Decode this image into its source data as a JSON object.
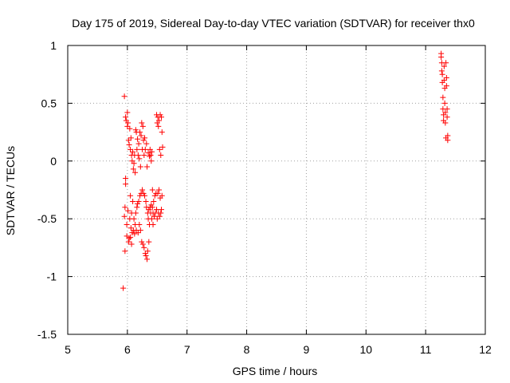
{
  "chart_data": {
    "type": "scatter",
    "title": "Day 175 of 2019, Sidereal Day-to-day VTEC variation (SDTVAR) for receiver thx0",
    "xlabel": "GPS time / hours",
    "ylabel": "SDTVAR / TECUs",
    "xlim": [
      5,
      12
    ],
    "ylim": [
      -1.5,
      1
    ],
    "xticks": [
      "5",
      "6",
      "7",
      "8",
      "9",
      "10",
      "11",
      "12"
    ],
    "yticks": [
      "-1.5",
      "-1",
      "-0.5",
      "0",
      "0.5",
      "1"
    ],
    "grid": true,
    "marker": "+",
    "series": [
      {
        "name": "SDTVAR",
        "color": "#ff0000",
        "points": [
          [
            5.93,
            -1.1
          ],
          [
            5.95,
            0.56
          ],
          [
            5.96,
            -0.78
          ],
          [
            5.95,
            -0.48
          ],
          [
            5.96,
            -0.4
          ],
          [
            5.97,
            -0.15
          ],
          [
            5.97,
            -0.2
          ],
          [
            5.97,
            0.38
          ],
          [
            5.98,
            0.35
          ],
          [
            5.99,
            -0.55
          ],
          [
            5.99,
            -0.65
          ],
          [
            6.0,
            0.42
          ],
          [
            6.0,
            0.3
          ],
          [
            6.01,
            -0.43
          ],
          [
            6.01,
            0.33
          ],
          [
            6.02,
            -0.7
          ],
          [
            6.02,
            0.18
          ],
          [
            6.03,
            -0.67
          ],
          [
            6.03,
            0.14
          ],
          [
            6.04,
            -0.5
          ],
          [
            6.04,
            0.28
          ],
          [
            6.05,
            -0.66
          ],
          [
            6.05,
            -0.3
          ],
          [
            6.05,
            0.1
          ],
          [
            6.06,
            -0.58
          ],
          [
            6.06,
            0.2
          ],
          [
            6.07,
            -0.72
          ],
          [
            6.07,
            -0.45
          ],
          [
            6.07,
            0.05
          ],
          [
            6.08,
            -0.62
          ],
          [
            6.08,
            0.0
          ],
          [
            6.09,
            -0.35
          ],
          [
            6.09,
            0.08
          ],
          [
            6.1,
            -0.6
          ],
          [
            6.1,
            -0.07
          ],
          [
            6.11,
            -0.5
          ],
          [
            6.11,
            -0.02
          ],
          [
            6.12,
            -0.63
          ],
          [
            6.12,
            0.05
          ],
          [
            6.13,
            -0.55
          ],
          [
            6.13,
            -0.1
          ],
          [
            6.14,
            0.27
          ],
          [
            6.14,
            -0.45
          ],
          [
            6.15,
            0.25
          ],
          [
            6.15,
            -0.6
          ],
          [
            6.16,
            -0.4
          ],
          [
            6.16,
            0.1
          ],
          [
            6.17,
            -0.37
          ],
          [
            6.17,
            0.19
          ],
          [
            6.18,
            -0.62
          ],
          [
            6.18,
            0.05
          ],
          [
            6.19,
            -0.35
          ],
          [
            6.19,
            0.15
          ],
          [
            6.2,
            0.02
          ],
          [
            6.2,
            -0.55
          ],
          [
            6.21,
            0.25
          ],
          [
            6.21,
            -0.3
          ],
          [
            6.22,
            -0.05
          ],
          [
            6.22,
            -0.6
          ],
          [
            6.23,
            -0.28
          ],
          [
            6.23,
            0.22
          ],
          [
            6.24,
            -0.7
          ],
          [
            6.24,
            0.33
          ],
          [
            6.25,
            -0.25
          ],
          [
            6.25,
            0.1
          ],
          [
            6.26,
            -0.72
          ],
          [
            6.26,
            0.3
          ],
          [
            6.27,
            -0.28
          ],
          [
            6.27,
            0.18
          ],
          [
            6.28,
            -0.75
          ],
          [
            6.28,
            0.05
          ],
          [
            6.29,
            -0.3
          ],
          [
            6.29,
            0.2
          ],
          [
            6.3,
            -0.8
          ],
          [
            6.3,
            0.1
          ],
          [
            6.31,
            -0.35
          ],
          [
            6.31,
            -0.82
          ],
          [
            6.32,
            0.15
          ],
          [
            6.32,
            -0.4
          ],
          [
            6.33,
            -0.85
          ],
          [
            6.33,
            -0.05
          ],
          [
            6.34,
            -0.45
          ],
          [
            6.34,
            -0.78
          ],
          [
            6.35,
            -0.5
          ],
          [
            6.35,
            0.07
          ],
          [
            6.36,
            -0.7
          ],
          [
            6.36,
            -0.42
          ],
          [
            6.37,
            0.04
          ],
          [
            6.37,
            -0.55
          ],
          [
            6.38,
            -0.4
          ],
          [
            6.38,
            0.1
          ],
          [
            6.39,
            -0.45
          ],
          [
            6.39,
            0.05
          ],
          [
            6.4,
            -0.38
          ],
          [
            6.4,
            0.0
          ],
          [
            6.41,
            -0.5
          ],
          [
            6.41,
            0.08
          ],
          [
            6.42,
            -0.4
          ],
          [
            6.42,
            -0.25
          ],
          [
            6.43,
            -0.55
          ],
          [
            6.43,
            -0.45
          ],
          [
            6.44,
            -0.35
          ],
          [
            6.45,
            -0.48
          ],
          [
            6.46,
            -0.3
          ],
          [
            6.47,
            -0.45
          ],
          [
            6.48,
            -0.28
          ],
          [
            6.49,
            0.4
          ],
          [
            6.49,
            -0.42
          ],
          [
            6.5,
            0.33
          ],
          [
            6.5,
            -0.5
          ],
          [
            6.51,
            -0.28
          ],
          [
            6.51,
            0.38
          ],
          [
            6.52,
            -0.45
          ],
          [
            6.52,
            0.3
          ],
          [
            6.53,
            -0.25
          ],
          [
            6.53,
            0.35
          ],
          [
            6.54,
            -0.48
          ],
          [
            6.54,
            0.1
          ],
          [
            6.55,
            -0.32
          ],
          [
            6.55,
            0.4
          ],
          [
            6.56,
            -0.45
          ],
          [
            6.56,
            0.05
          ],
          [
            6.57,
            0.38
          ],
          [
            6.57,
            -0.42
          ],
          [
            6.58,
            0.25
          ],
          [
            6.58,
            -0.3
          ],
          [
            6.59,
            0.12
          ],
          [
            11.26,
            0.93
          ],
          [
            11.26,
            0.9
          ],
          [
            11.27,
            0.85
          ],
          [
            11.27,
            0.78
          ],
          [
            11.28,
            0.75
          ],
          [
            11.28,
            0.68
          ],
          [
            11.29,
            0.55
          ],
          [
            11.29,
            0.45
          ],
          [
            11.3,
            0.4
          ],
          [
            11.3,
            0.35
          ],
          [
            11.31,
            0.82
          ],
          [
            11.31,
            0.7
          ],
          [
            11.32,
            0.63
          ],
          [
            11.32,
            0.5
          ],
          [
            11.33,
            0.42
          ],
          [
            11.33,
            0.33
          ],
          [
            11.34,
            0.2
          ],
          [
            11.34,
            0.85
          ],
          [
            11.35,
            0.72
          ],
          [
            11.35,
            0.65
          ],
          [
            11.36,
            0.45
          ],
          [
            11.36,
            0.38
          ],
          [
            11.37,
            0.18
          ],
          [
            11.37,
            0.22
          ]
        ]
      }
    ]
  }
}
